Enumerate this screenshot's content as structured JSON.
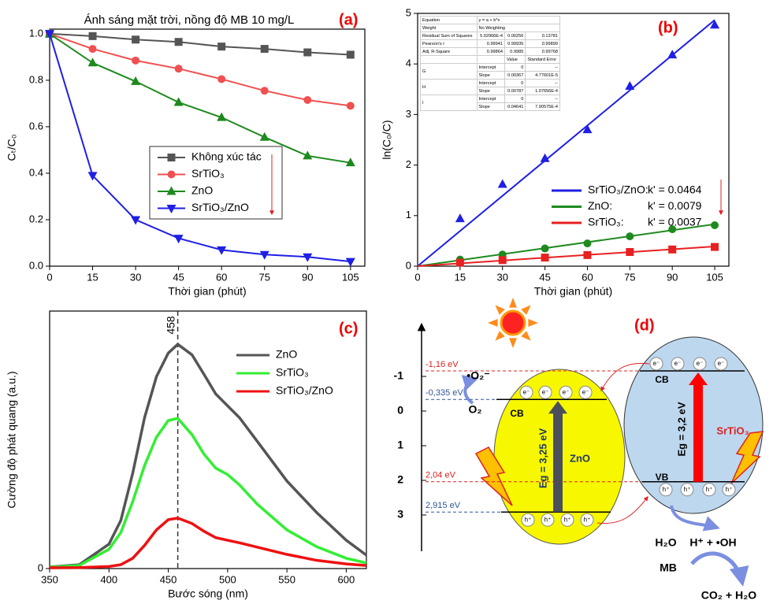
{
  "chart_data": [
    {
      "type": "line",
      "label": "(a)",
      "title": "Ánh sáng mặt trời, nồng độ MB 10 mg/L",
      "x_label": "Thời gian (phút)",
      "y_label": "Cₜ/C₀",
      "x": [
        0,
        15,
        30,
        45,
        60,
        75,
        90,
        105
      ],
      "xlim": [
        0,
        110
      ],
      "xticks": [
        0,
        15,
        30,
        45,
        60,
        75,
        90,
        105
      ],
      "ylim": [
        0,
        1.02
      ],
      "yticks": [
        {
          "value": 0,
          "label": "0.0"
        },
        0.2,
        0.4,
        0.6,
        0.8,
        {
          "value": 1,
          "label": "1.0"
        }
      ],
      "series": [
        {
          "name": "Không xúc tác",
          "color": "#555555",
          "marker": "square",
          "values": [
            1.0,
            0.99,
            0.975,
            0.965,
            0.945,
            0.935,
            0.92,
            0.91
          ]
        },
        {
          "name": "SrTiO₃",
          "color": "#f05050",
          "marker": "circle",
          "values": [
            1.0,
            0.935,
            0.885,
            0.85,
            0.805,
            0.755,
            0.715,
            0.69
          ]
        },
        {
          "name": "ZnO",
          "color": "#1e8a1e",
          "marker": "triangle-up",
          "values": [
            1.0,
            0.875,
            0.795,
            0.705,
            0.64,
            0.555,
            0.475,
            0.445
          ]
        },
        {
          "name": "SrTiO₃/ZnO",
          "color": "#1f1fe6",
          "marker": "triangle-down",
          "values": [
            1.0,
            0.39,
            0.2,
            0.12,
            0.07,
            0.05,
            0.04,
            0.02
          ]
        }
      ]
    },
    {
      "type": "scatter",
      "label": "(b)",
      "x_label": "Thời gian (phút)",
      "y_label": "ln(C₀/C)",
      "x": [
        15,
        30,
        45,
        60,
        75,
        90,
        105
      ],
      "xlim": [
        0,
        110
      ],
      "xticks": [
        0,
        15,
        30,
        45,
        60,
        75,
        90,
        105
      ],
      "ylim": [
        0,
        5
      ],
      "yticks": [
        0,
        1,
        2,
        3,
        4,
        5
      ],
      "series": [
        {
          "name": "SrTiO₃/ZnO:",
          "k_label": "k' = 0.0464",
          "color": "#1f1fe6",
          "marker": "triangle-up",
          "values": [
            0.94,
            1.62,
            2.13,
            2.7,
            3.56,
            4.18,
            4.77
          ],
          "fit_x": [
            0,
            105
          ],
          "fit_values": [
            0,
            4.87
          ]
        },
        {
          "name": "ZnO:",
          "k_label": "k' = 0.0079",
          "color": "#1e8a1e",
          "marker": "circle",
          "values": [
            0.13,
            0.23,
            0.35,
            0.45,
            0.59,
            0.73,
            0.81
          ],
          "fit_x": [
            0,
            105
          ],
          "fit_values": [
            0,
            0.83
          ]
        },
        {
          "name": "SrTiO₃:",
          "k_label": "k' = 0.0037",
          "color": "#e82020",
          "marker": "square",
          "values": [
            0.07,
            0.12,
            0.17,
            0.22,
            0.28,
            0.33,
            0.38
          ],
          "fit_x": [
            0,
            105
          ],
          "fit_values": [
            0,
            0.39
          ]
        }
      ]
    },
    {
      "type": "line",
      "label": "(c)",
      "x_label": "Bước sóng (nm)",
      "y_label": "Cường độ phát quang (a.u.)",
      "x": [
        350,
        375,
        400,
        410,
        420,
        430,
        440,
        450,
        458,
        470,
        480,
        490,
        500,
        510,
        525,
        550,
        575,
        600,
        617
      ],
      "xlim": [
        350,
        617
      ],
      "xticks": [
        350,
        400,
        450,
        500,
        550,
        600
      ],
      "ylim": [
        0,
        100
      ],
      "yticks": [
        0
      ],
      "peak": 458,
      "series": [
        {
          "name": "ZnO",
          "color": "#555555",
          "values": [
            0.6,
            1.5,
            9.5,
            18.7,
            37,
            58.6,
            74.5,
            83.7,
            87.1,
            83,
            75.5,
            67.8,
            63.2,
            58.6,
            49.4,
            34,
            21.8,
            11,
            5.2
          ]
        },
        {
          "name": "SrTiO₃",
          "color": "#33ee33",
          "values": [
            0.5,
            1.2,
            7.5,
            14,
            26,
            40,
            51,
            57.5,
            58.3,
            52,
            44.5,
            39,
            36.5,
            32.5,
            25,
            15,
            8.5,
            4,
            2.2
          ]
        },
        {
          "name": "SrTiO₃/ZnO",
          "color": "#ee1111",
          "values": [
            0.3,
            0.4,
            0.8,
            1.5,
            4,
            9,
            15,
            19,
            19.6,
            17.5,
            14.5,
            12,
            11,
            10,
            8.3,
            5.5,
            3.2,
            1.8,
            1.2
          ]
        }
      ]
    }
  ],
  "fit_table": {
    "rows": [
      {
        "name": "Equation",
        "values": [
          "y = a + b*x"
        ]
      },
      {
        "name": "Weight",
        "values": [
          "No Weighting"
        ]
      },
      {
        "name": "Residual Sum of Squares",
        "values": [
          "5.02966E-4",
          "0.00256",
          "0.13781"
        ]
      },
      {
        "name": "Pearson's r",
        "values": [
          "0.99941",
          "0.99935",
          "0.99899"
        ]
      },
      {
        "name": "Adj. R-Square",
        "values": [
          "0.99864",
          "0.9985",
          "0.99768"
        ]
      }
    ],
    "columns": [
      "Value",
      "Standard Error"
    ],
    "groups": [
      {
        "name": "G",
        "rows": [
          {
            "param": "Intercept",
            "values": [
              "0",
              "--"
            ]
          },
          {
            "param": "Slope",
            "values": [
              "0.00367",
              "4.77601E-5"
            ]
          }
        ]
      },
      {
        "name": "H",
        "rows": [
          {
            "param": "Intercept",
            "values": [
              "0",
              "--"
            ]
          },
          {
            "param": "Slope",
            "values": [
              "0.00787",
              "1.07656E-4"
            ]
          }
        ]
      },
      {
        "name": "I",
        "rows": [
          {
            "param": "Intercept",
            "values": [
              "0",
              "--"
            ]
          },
          {
            "param": "Slope",
            "values": [
              "0.04641",
              "7.90575E-4"
            ]
          }
        ]
      }
    ]
  },
  "diagram": {
    "label": "(d)",
    "energy_ticks": [
      -1,
      0,
      1,
      2,
      3
    ],
    "levels": [
      {
        "value": -1.16,
        "label": "-1,16 eV",
        "color": "#e02020"
      },
      {
        "value": -0.335,
        "label": "-0,335 eV",
        "color": "#2f5597"
      },
      {
        "value": 2.04,
        "label": "2,04 eV",
        "color": "#e02020"
      },
      {
        "value": 2.915,
        "label": "2,915 eV",
        "color": "#2f5597"
      }
    ],
    "electron": "e⁻",
    "hole": "h⁺",
    "zno": {
      "name": "ZnO",
      "cb": "CB",
      "band_gap": "Eg = 3,25 eV"
    },
    "srtio3": {
      "name": "SrTiO₃",
      "cb": "CB",
      "vb": "VB",
      "band_gap": "Eg = 3,2 eV"
    },
    "species": {
      "superoxide": "•O₂⁻",
      "o2": "O₂",
      "h2o": "H₂O",
      "products": "H⁺ + •OH",
      "mb": "MB",
      "final": "CO₂ + H₂O"
    }
  }
}
